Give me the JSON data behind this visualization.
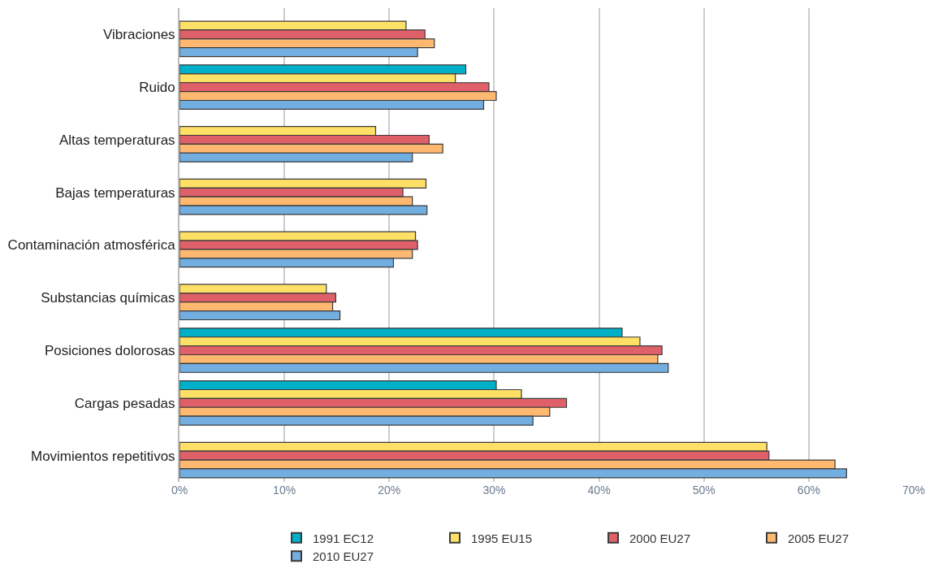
{
  "chart_data": {
    "type": "bar",
    "orientation": "horizontal",
    "categories": [
      "Vibraciones",
      "Ruido",
      "Altas temperaturas",
      "Bajas temperaturas",
      "Contaminación atmosférica",
      "Substancias químicas",
      "Posiciones dolorosas",
      "Cargas pesadas",
      "Movimientos repetitivos"
    ],
    "series": [
      {
        "name": "1991 EC12",
        "color": "#00b0c8",
        "values": [
          null,
          27.3,
          null,
          null,
          null,
          null,
          42.2,
          30.2,
          null
        ]
      },
      {
        "name": "1995 EU15",
        "color": "#ffe066",
        "values": [
          21.6,
          26.3,
          18.7,
          23.5,
          22.5,
          14.0,
          43.9,
          32.6,
          56.0
        ]
      },
      {
        "name": "2000 EU27",
        "color": "#e0606a",
        "values": [
          23.4,
          29.5,
          23.8,
          21.3,
          22.7,
          14.9,
          46.0,
          36.9,
          56.2
        ]
      },
      {
        "name": "2005 EU27",
        "color": "#ffb870",
        "values": [
          24.3,
          30.2,
          25.1,
          22.2,
          22.2,
          14.6,
          45.6,
          35.3,
          62.5
        ]
      },
      {
        "name": "2010 EU27",
        "color": "#72aee0",
        "values": [
          22.7,
          29.0,
          22.2,
          23.6,
          20.4,
          15.3,
          46.6,
          33.7,
          63.6
        ]
      }
    ],
    "xlim": [
      0,
      70
    ],
    "xticks": [
      {
        "value": 0,
        "label": "0%"
      },
      {
        "value": 10,
        "label": "10%"
      },
      {
        "value": 20,
        "label": "20%"
      },
      {
        "value": 30,
        "label": "30%"
      },
      {
        "value": 40,
        "label": "40%"
      },
      {
        "value": 50,
        "label": "50%"
      },
      {
        "value": 60,
        "label": "60%"
      },
      {
        "value": 70,
        "label": "70%"
      }
    ],
    "grid": "x",
    "legend": "bottom right"
  }
}
